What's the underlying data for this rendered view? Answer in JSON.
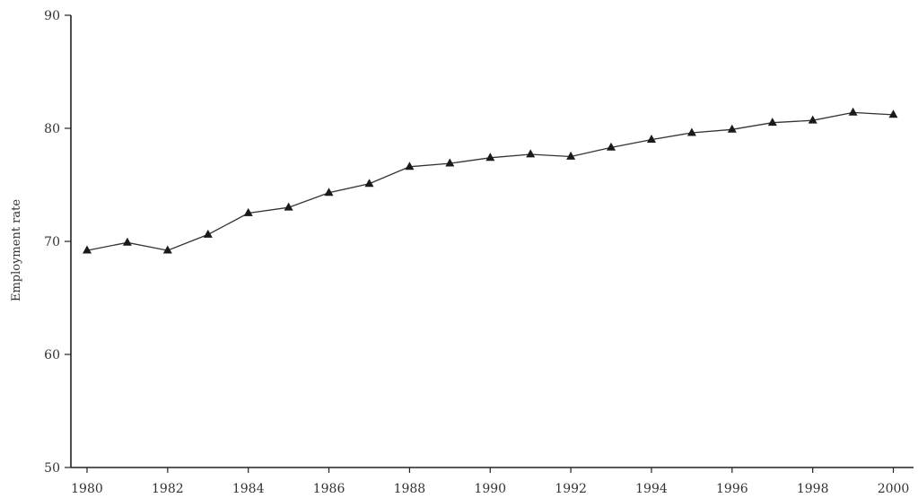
{
  "chart_data": {
    "type": "line",
    "title": "",
    "xlabel": "",
    "ylabel": "Employment rate",
    "xlim": [
      1979.6,
      2000.5
    ],
    "ylim": [
      50,
      90
    ],
    "x_ticks": [
      1980,
      1982,
      1984,
      1986,
      1988,
      1990,
      1992,
      1994,
      1996,
      1998,
      2000
    ],
    "x_tick_labels": [
      "1980",
      "1982",
      "1984",
      "1986",
      "1988",
      "1990",
      "1992",
      "1994",
      "1996",
      "1998",
      "2000"
    ],
    "y_ticks": [
      50,
      60,
      70,
      80,
      90
    ],
    "y_tick_labels": [
      "50",
      "60",
      "70",
      "80",
      "90"
    ],
    "grid": false,
    "legend": "none",
    "line_color": "#333333",
    "marker": "triangle",
    "x": [
      1980,
      1981,
      1982,
      1983,
      1984,
      1985,
      1986,
      1987,
      1988,
      1989,
      1990,
      1991,
      1992,
      1993,
      1994,
      1995,
      1996,
      1997,
      1998,
      1999,
      2000
    ],
    "series": [
      {
        "values": [
          69.2,
          69.9,
          69.2,
          70.6,
          72.5,
          73.0,
          74.3,
          75.1,
          76.6,
          76.9,
          77.4,
          77.7,
          77.5,
          78.3,
          79.0,
          79.6,
          79.9,
          80.5,
          80.7,
          81.4,
          81.2
        ]
      }
    ]
  }
}
